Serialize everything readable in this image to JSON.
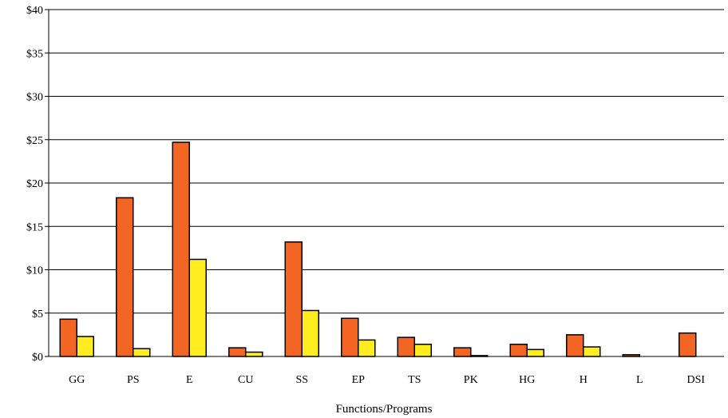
{
  "chart_data": {
    "type": "bar",
    "title": "",
    "xlabel": "Functions/Programs",
    "ylabel": "",
    "categories": [
      "GG",
      "PS",
      "E",
      "CU",
      "SS",
      "EP",
      "TS",
      "PK",
      "HG",
      "H",
      "L",
      "DSI"
    ],
    "series": [
      {
        "color": "#f26522",
        "values": [
          4.3,
          18.3,
          24.7,
          1.0,
          13.2,
          4.4,
          2.2,
          1.0,
          1.4,
          2.5,
          0.2,
          2.7
        ]
      },
      {
        "color": "#ffed1f",
        "values": [
          2.3,
          0.9,
          11.2,
          0.5,
          5.3,
          1.9,
          1.4,
          0.1,
          0.8,
          1.1,
          0.0,
          0.0
        ]
      }
    ],
    "ylim": [
      0,
      40
    ],
    "yticks": [
      0,
      5,
      10,
      15,
      20,
      25,
      30,
      35,
      40
    ],
    "ytick_labels": [
      "$0",
      "$5",
      "$10",
      "$15",
      "$20",
      "$25",
      "$30",
      "$35",
      "$40"
    ],
    "grid": true,
    "legend": "none"
  }
}
